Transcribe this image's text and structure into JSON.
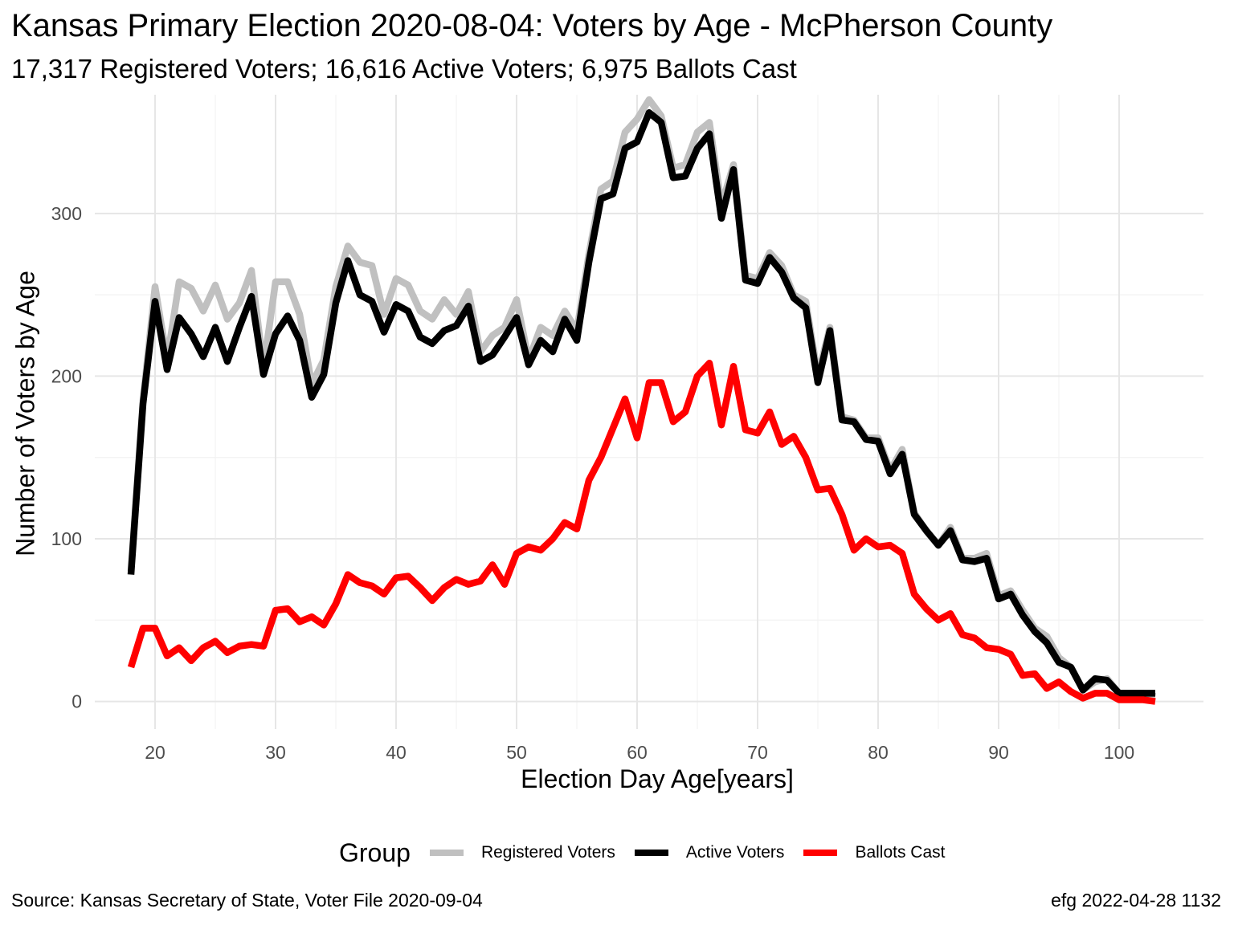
{
  "title": "Kansas Primary Election 2020-08-04:  Voters by Age - McPherson County",
  "subtitle": "17,317 Registered Voters; 16,616 Active Voters; 6,975 Ballots Cast",
  "source": "Source:  Kansas Secretary of State, Voter File  2020-09-04",
  "stamp": "efg 2022-04-28 1132",
  "legend": {
    "title": "Group",
    "items": [
      {
        "label": "Registered Voters",
        "color": "#c0c0c0"
      },
      {
        "label": "Active Voters",
        "color": "#000000"
      },
      {
        "label": "Ballots Cast",
        "color": "#ff0000"
      }
    ]
  },
  "chart_data": {
    "type": "line",
    "xlabel": "Election Day Age[years]",
    "ylabel": "Number of Voters by Age",
    "xlim": [
      15,
      107
    ],
    "ylim": [
      -17,
      373
    ],
    "xticks": [
      20,
      30,
      40,
      50,
      60,
      70,
      80,
      90,
      100
    ],
    "yticks": [
      0,
      100,
      200,
      300
    ],
    "grid": true,
    "legend_position": "bottom",
    "x": [
      18,
      19,
      20,
      21,
      22,
      23,
      24,
      25,
      26,
      27,
      28,
      29,
      30,
      31,
      32,
      33,
      34,
      35,
      36,
      37,
      38,
      39,
      40,
      41,
      42,
      43,
      44,
      45,
      46,
      47,
      48,
      49,
      50,
      51,
      52,
      53,
      54,
      55,
      56,
      57,
      58,
      59,
      60,
      61,
      62,
      63,
      64,
      65,
      66,
      67,
      68,
      69,
      70,
      71,
      72,
      73,
      74,
      75,
      76,
      77,
      78,
      79,
      80,
      81,
      82,
      83,
      84,
      85,
      86,
      87,
      88,
      89,
      90,
      91,
      92,
      93,
      94,
      95,
      96,
      97,
      98,
      99,
      100,
      101,
      102,
      103
    ],
    "series": [
      {
        "name": "Registered Voters",
        "color": "#c0c0c0",
        "values": [
          80,
          185,
          255,
          210,
          258,
          254,
          240,
          256,
          235,
          245,
          265,
          205,
          258,
          258,
          238,
          195,
          210,
          255,
          280,
          270,
          268,
          238,
          260,
          256,
          240,
          235,
          247,
          238,
          252,
          215,
          225,
          230,
          247,
          210,
          230,
          225,
          240,
          228,
          275,
          315,
          320,
          350,
          358,
          370,
          360,
          328,
          330,
          350,
          356,
          305,
          330,
          262,
          260,
          276,
          268,
          250,
          246,
          200,
          230,
          175,
          173,
          162,
          162,
          142,
          155,
          116,
          105,
          96,
          107,
          88,
          88,
          91,
          65,
          68,
          56,
          45,
          40,
          27,
          21,
          7,
          12,
          14,
          5,
          5,
          5,
          3
        ]
      },
      {
        "name": "Active Voters",
        "color": "#000000",
        "values": [
          78,
          183,
          246,
          204,
          236,
          226,
          212,
          230,
          209,
          230,
          249,
          201,
          226,
          237,
          222,
          187,
          201,
          245,
          271,
          250,
          246,
          227,
          244,
          240,
          224,
          220,
          228,
          231,
          243,
          209,
          213,
          224,
          236,
          207,
          222,
          215,
          235,
          222,
          270,
          309,
          312,
          340,
          344,
          362,
          356,
          322,
          323,
          340,
          349,
          297,
          327,
          259,
          257,
          273,
          264,
          248,
          242,
          196,
          228,
          173,
          172,
          161,
          160,
          140,
          152,
          115,
          105,
          96,
          105,
          87,
          86,
          88,
          63,
          66,
          53,
          43,
          36,
          24,
          21,
          7,
          14,
          13,
          5,
          5,
          5,
          5
        ]
      },
      {
        "name": "Ballots Cast",
        "color": "#ff0000",
        "values": [
          21,
          45,
          45,
          28,
          33,
          25,
          33,
          37,
          30,
          34,
          35,
          34,
          56,
          57,
          49,
          52,
          47,
          60,
          78,
          73,
          71,
          66,
          76,
          77,
          70,
          62,
          70,
          75,
          72,
          74,
          84,
          72,
          91,
          95,
          93,
          100,
          110,
          106,
          136,
          150,
          168,
          186,
          162,
          196,
          196,
          172,
          178,
          200,
          208,
          170,
          206,
          167,
          165,
          178,
          158,
          163,
          150,
          130,
          131,
          115,
          93,
          100,
          95,
          96,
          91,
          66,
          57,
          50,
          54,
          41,
          39,
          33,
          32,
          29,
          16,
          17,
          8,
          12,
          6,
          2,
          5,
          5,
          1,
          1,
          1,
          0
        ]
      }
    ]
  }
}
